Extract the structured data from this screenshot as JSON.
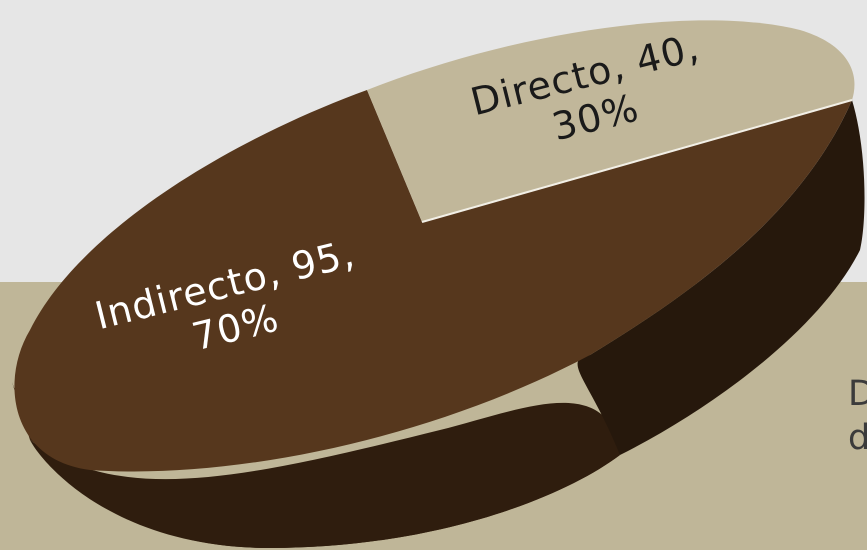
{
  "colors": {
    "background_upper": "#e6e6e6",
    "background_lower": "#bfb698",
    "indirecto_top": "#56371d",
    "indirecto_side": "#3d2714",
    "directo_top": "#c1b79a",
    "directo_side": "#26180c",
    "label_light": "#ffffff",
    "label_dark": "#1a1a1a"
  },
  "side_text": {
    "line1": "D",
    "line2": "d"
  },
  "chart_data": {
    "type": "pie",
    "style": "3d-tilted",
    "categories": [
      "Directo",
      "Indirecto"
    ],
    "values": [
      40,
      95
    ],
    "percentages": [
      "30%",
      "70%"
    ],
    "series": [
      {
        "values": [
          40,
          95
        ]
      }
    ],
    "data_labels": [
      {
        "category": "Directo",
        "value": "40",
        "percent": "30%"
      },
      {
        "category": "Indirecto",
        "value": "95",
        "percent": "70%"
      }
    ],
    "legend": "none"
  }
}
